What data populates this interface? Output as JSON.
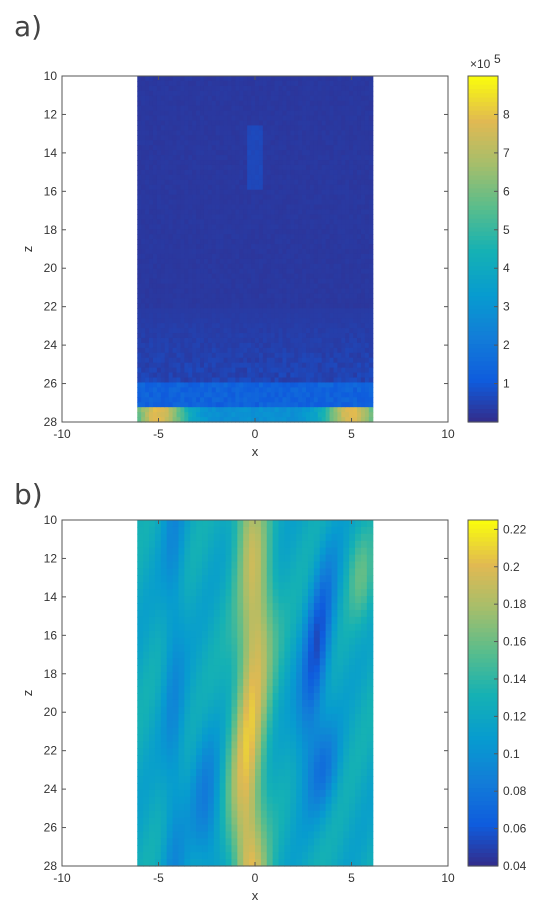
{
  "chart_data": [
    {
      "type": "heatmap",
      "panel_label": "a)",
      "title": "",
      "xlabel": "x",
      "ylabel": "z",
      "xlim": [
        -10,
        10
      ],
      "ylim": [
        10,
        28
      ],
      "y_reversed": true,
      "xticks": [
        -10,
        -5,
        0,
        5,
        10
      ],
      "yticks": [
        10,
        12,
        14,
        16,
        18,
        20,
        22,
        24,
        26,
        28
      ],
      "data_x_extent": [
        -6.1,
        6.1
      ],
      "colormap": "parula",
      "colorbar": {
        "min": 0,
        "max": 9,
        "ticks": [
          1,
          2,
          3,
          4,
          5,
          6,
          7,
          8
        ],
        "exponent_label": "×10",
        "exponent": "5"
      },
      "description_of_field": "low background (~0.3) with bright bands near z=27.2-28, strongest near x=±5 (~7)"
    },
    {
      "type": "heatmap",
      "panel_label": "b)",
      "title": "",
      "xlabel": "x",
      "ylabel": "z",
      "xlim": [
        -10,
        10
      ],
      "ylim": [
        10,
        28
      ],
      "y_reversed": true,
      "xticks": [
        -10,
        -5,
        0,
        5,
        10
      ],
      "yticks": [
        10,
        12,
        14,
        16,
        18,
        20,
        22,
        24,
        26,
        28
      ],
      "data_x_extent": [
        -6.1,
        6.1
      ],
      "colormap": "parula",
      "colorbar": {
        "min": 0.04,
        "max": 0.225,
        "ticks": [
          0.04,
          0.06,
          0.08,
          0.1,
          0.12,
          0.14,
          0.16,
          0.18,
          0.2,
          0.22
        ],
        "tick_labels": [
          "0.04",
          "0.06",
          "0.08",
          "0.1",
          "0.12",
          "0.14",
          "0.16",
          "0.18",
          "0.2",
          "0.22"
        ]
      },
      "description_of_field": "vertical bright band near x=0 (~0.2), dark streak near x=3 (~0.05), mid background ~0.12"
    }
  ]
}
